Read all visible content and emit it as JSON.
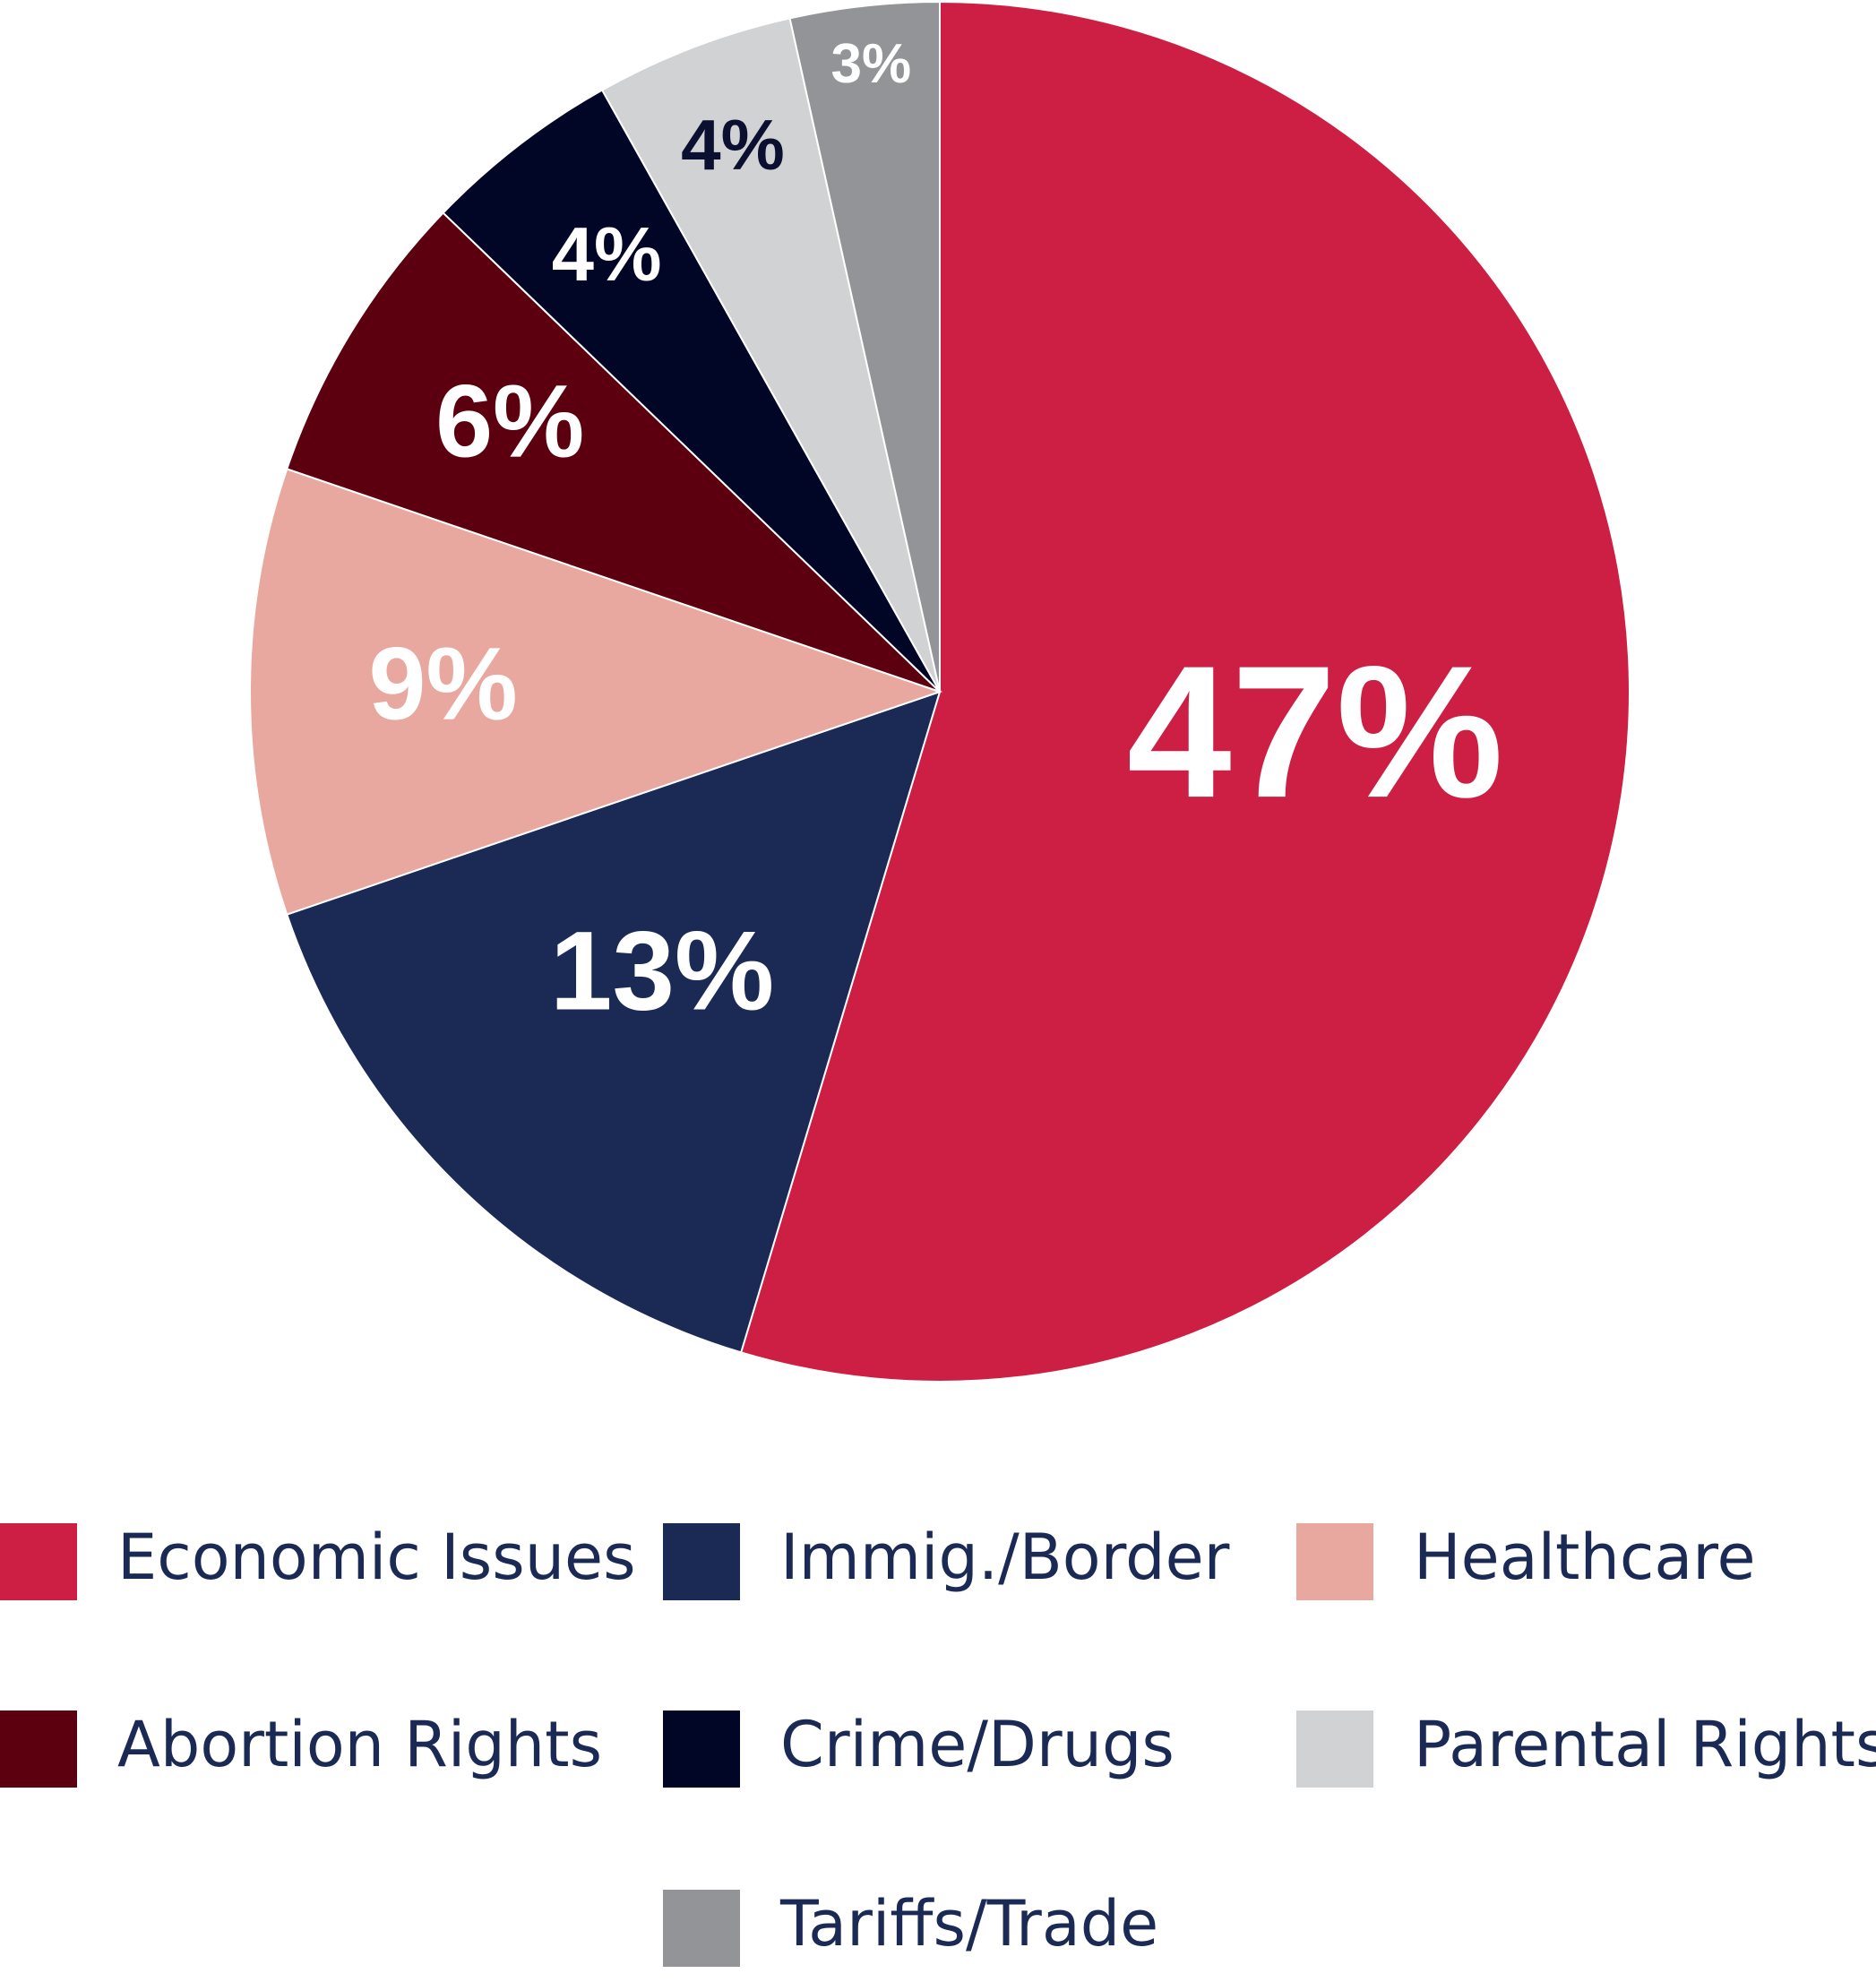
{
  "chart_data": {
    "type": "pie",
    "title": "",
    "start_angle_deg": 0,
    "direction": "clockwise",
    "slices": [
      {
        "label": "Economic Issues",
        "value": 47,
        "display": "47%",
        "color": "#cc1f43",
        "label_color": "#ffffff"
      },
      {
        "label": "Immig./Border",
        "value": 13,
        "display": "13%",
        "color": "#1b2a55",
        "label_color": "#ffffff"
      },
      {
        "label": "Healthcare",
        "value": 9,
        "display": "9%",
        "color": "#e8a89f",
        "label_color": "#ffffff"
      },
      {
        "label": "Abortion Rights",
        "value": 6,
        "display": "6%",
        "color": "#5c000f",
        "label_color": "#ffffff"
      },
      {
        "label": "Crime/Drugs",
        "value": 4,
        "display": "4%",
        "color": "#020626",
        "label_color": "#ffffff"
      },
      {
        "label": "Parental Rights",
        "value": 4,
        "display": "4%",
        "color": "#d1d2d4",
        "label_color": "#0b1030"
      },
      {
        "label": "Tariffs/Trade",
        "value": 3,
        "display": "3%",
        "color": "#939497",
        "label_color": "#ffffff"
      }
    ],
    "legend": {
      "placement": "bottom",
      "columns": 3,
      "text_color": "#1b2a55"
    }
  }
}
